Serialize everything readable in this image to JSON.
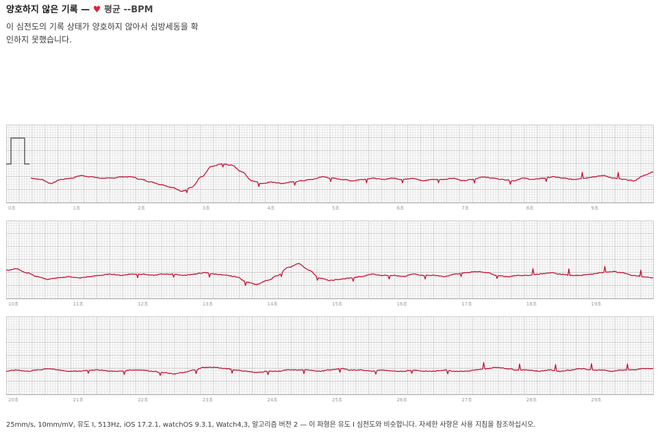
{
  "header": {
    "title": "양호하지 않은 기록",
    "separator": "—",
    "heart_glyph": "♥",
    "avg_label": "평균",
    "bpm_value": "--",
    "bpm_unit": "BPM",
    "description": "이 심전도의 기록 상태가 양호하지 않아서 심방세동을 확인하지 못했습니다."
  },
  "footer": {
    "text": "25mm/s, 10mm/mV, 유도 I, 513Hz, iOS 17.2.1, watchOS 9.3.1, Watch4,3, 알고리즘 버전 2 — 이 파형은 유도 I 심전도와 비슷합니다. 자세한 사항은 사용 지침을 참조하십시오."
  },
  "colors": {
    "trace": "#c8102e",
    "grid_minor": "#e6e6e6",
    "grid_major": "#c8c8c8",
    "tick_label": "#9a9a9a",
    "heart": "#e0223a"
  },
  "chart_data": [
    {
      "type": "line",
      "x_unit": "초",
      "xlim": [
        0,
        10
      ],
      "tick_labels": [
        "0초",
        "1초",
        "2초",
        "3초",
        "4초",
        "5초",
        "6초",
        "7초",
        "8초",
        "9초"
      ],
      "calibration_pulse": true,
      "y_baseline": [
        0.05,
        0.0,
        -0.15,
        0.0,
        0.05,
        0.15,
        0.1,
        0.05,
        0.05,
        0.1,
        0.1,
        0.0,
        -0.1,
        -0.2,
        -0.3,
        -0.45,
        -0.3,
        0.1,
        0.5,
        0.6,
        0.55,
        0.3,
        -0.05,
        -0.15,
        -0.1,
        -0.15,
        -0.1,
        -0.05,
        0.0,
        0.1,
        0.05,
        0.0,
        -0.05,
        0.0,
        0.05,
        0.0,
        0.05,
        0.0,
        0.05,
        -0.05,
        0.0,
        0.0,
        0.05,
        -0.05,
        0.0,
        0.1,
        0.05,
        0.0,
        -0.05,
        0.05,
        0.0,
        0.05,
        0.1,
        0.05,
        0.0,
        0.05,
        0.1,
        0.15,
        0.05,
        0.0,
        -0.05,
        0.15,
        0.3
      ]
    },
    {
      "type": "line",
      "x_unit": "초",
      "xlim": [
        10,
        20
      ],
      "tick_labels": [
        "10초",
        "11초",
        "12초",
        "13초",
        "14초",
        "15초",
        "16초",
        "17초",
        "18초",
        "19초"
      ],
      "calibration_pulse": false,
      "y_baseline": [
        0.2,
        0.25,
        0.1,
        -0.05,
        -0.15,
        -0.1,
        -0.05,
        -0.1,
        -0.05,
        0.0,
        0.05,
        0.0,
        0.05,
        0.05,
        0.0,
        0.05,
        0.05,
        0.0,
        0.05,
        0.1,
        0.05,
        0.0,
        -0.05,
        -0.25,
        -0.35,
        -0.2,
        0.0,
        0.3,
        0.45,
        0.2,
        -0.1,
        -0.2,
        -0.15,
        -0.1,
        -0.05,
        0.05,
        0.0,
        0.0,
        -0.05,
        0.05,
        0.0,
        0.0,
        -0.05,
        0.05,
        0.1,
        0.15,
        0.1,
        0.0,
        -0.05,
        0.0,
        0.0,
        0.05,
        0.1,
        0.05,
        0.0,
        0.0,
        0.05,
        0.1,
        0.15,
        0.1,
        0.0,
        -0.05,
        -0.1
      ]
    },
    {
      "type": "line",
      "x_unit": "초",
      "xlim": [
        20,
        30
      ],
      "tick_labels": [
        "20초",
        "21초",
        "22초",
        "23초",
        "24초",
        "25초",
        "26초",
        "27초",
        "28초",
        "29초"
      ],
      "calibration_pulse": false,
      "y_baseline": [
        0.0,
        0.05,
        0.0,
        0.05,
        0.1,
        0.05,
        0.0,
        0.0,
        0.05,
        0.05,
        0.0,
        0.0,
        0.05,
        0.05,
        0.0,
        -0.05,
        -0.1,
        -0.05,
        0.05,
        0.15,
        0.15,
        0.1,
        0.05,
        0.0,
        -0.05,
        0.0,
        0.0,
        0.05,
        0.05,
        0.05,
        0.0,
        0.05,
        0.1,
        0.05,
        0.05,
        0.0,
        0.05,
        0.0,
        0.0,
        0.05,
        0.0,
        0.0,
        0.05,
        0.0,
        0.0,
        0.05,
        0.1,
        0.15,
        0.1,
        0.05,
        0.05,
        0.0,
        0.05,
        0.0,
        0.05,
        0.1,
        0.05,
        0.05,
        0.0,
        0.05,
        0.05,
        0.1,
        0.1
      ]
    }
  ]
}
